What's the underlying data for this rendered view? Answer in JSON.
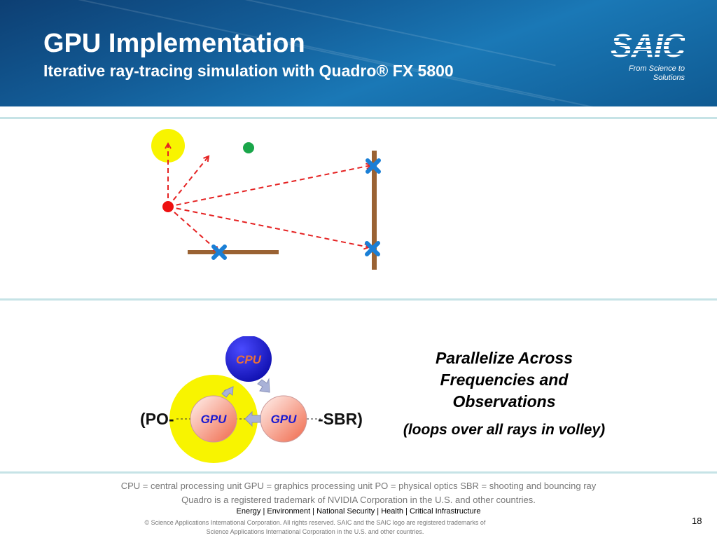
{
  "header": {
    "title": "GPU Implementation",
    "subtitle": "Iterative ray-tracing simulation with Quadro® FX 5800",
    "logo": {
      "text": "SAIC",
      "tagline": "From Science to Solutions"
    }
  },
  "cycle": {
    "cpu_label": "CPU",
    "gpu_left_label": "GPU",
    "gpu_right_label": "GPU",
    "po_label": "(PO-",
    "sbr_label": "-SBR)",
    "colors": {
      "cpu": "#1a1adf",
      "cpu_text": "#e8703a",
      "gpu_text": "#1a1ad0",
      "highlight": "#f8f400"
    }
  },
  "right_text": {
    "headline": [
      "Parallelize Across",
      "Frequencies and",
      "Observations"
    ],
    "note": "(loops over all rays in volley)"
  },
  "footer": {
    "definitions": "CPU = central processing unit  GPU = graphics processing unit  PO = physical optics  SBR = shooting and bouncing ray",
    "trademark": "Quadro is a registered trademark of NVIDIA Corporation in the U.S. and other countries.",
    "sectors": "Energy | Environment | National Security | Health | Critical Infrastructure",
    "copyright_1": "© Science Applications International Corporation. All rights reserved. SAIC and the SAIC logo are registered trademarks of",
    "copyright_2": "Science Applications International Corporation in the U.S. and other countries.",
    "page_number": "18"
  },
  "ray_diagram": {
    "colors": {
      "source": "#ee1111",
      "target": "#f8f400",
      "receiver": "#1aa64a",
      "ray": "#e52222",
      "wall": "#9a6233",
      "hit": "#1a7fd6"
    }
  }
}
